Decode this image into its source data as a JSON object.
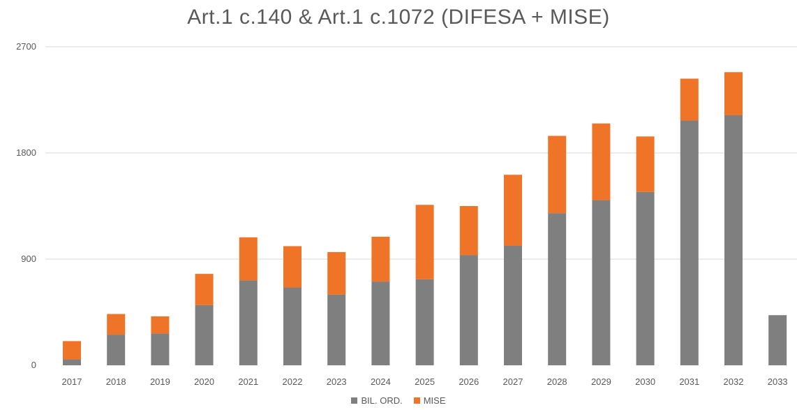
{
  "chart_data": {
    "type": "bar",
    "stacked": true,
    "title": "Art.1 c.140 & Art.1 c.1072 (DIFESA + MISE)",
    "xlabel": "",
    "ylabel": "",
    "ylim": [
      0,
      2700
    ],
    "yticks": [
      0,
      900,
      1800,
      2700
    ],
    "grid": true,
    "legend_position": "bottom",
    "categories": [
      "2017",
      "2018",
      "2019",
      "2020",
      "2021",
      "2022",
      "2023",
      "2024",
      "2025",
      "2026",
      "2027",
      "2028",
      "2029",
      "2030",
      "2031",
      "2032",
      "2033"
    ],
    "series": [
      {
        "name": "BIL. ORD.",
        "color": "#7f7f7f",
        "values": [
          50,
          260,
          270,
          510,
          720,
          660,
          600,
          710,
          730,
          935,
          1015,
          1290,
          1400,
          1470,
          2075,
          2120,
          425
        ]
      },
      {
        "name": "MISE",
        "color": "#f07427",
        "values": [
          155,
          175,
          145,
          265,
          365,
          350,
          360,
          380,
          630,
          415,
          600,
          655,
          650,
          470,
          355,
          365,
          0
        ]
      }
    ]
  }
}
